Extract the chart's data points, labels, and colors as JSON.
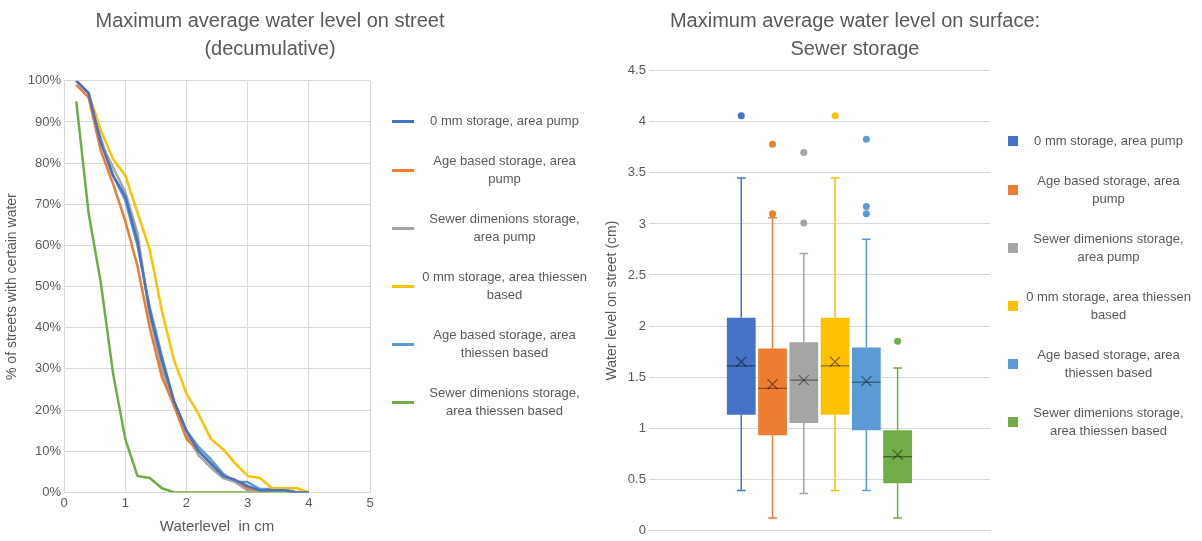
{
  "chart_data": [
    {
      "type": "line",
      "title": "Maximum average water level on street (decumulative)",
      "xlabel": "Waterlevel  in cm",
      "ylabel": "% of streets with certain water",
      "x": [
        0.2,
        0.4,
        0.6,
        0.8,
        1.0,
        1.2,
        1.4,
        1.6,
        1.8,
        2.0,
        2.2,
        2.4,
        2.6,
        2.8,
        3.0,
        3.2,
        3.4,
        3.6,
        3.8,
        4.0
      ],
      "series": [
        {
          "name": "0 mm storage, area pump",
          "color": "#4472c4",
          "values": [
            100,
            97,
            85,
            77,
            72,
            61,
            44,
            32,
            22,
            15,
            10,
            7,
            4,
            3,
            1.5,
            0.5,
            0.5,
            0.5,
            0,
            0
          ]
        },
        {
          "name": "Age based storage, area pump",
          "color": "#ed7d31",
          "values": [
            99,
            96,
            83,
            75,
            66,
            55,
            40,
            28,
            21,
            13,
            10,
            7,
            4,
            3,
            1,
            0.5,
            0.5,
            null,
            null,
            null
          ]
        },
        {
          "name": "Sewer dimenions storage, area pump",
          "color": "#a5a5a5",
          "values": [
            100,
            97,
            85,
            79,
            73,
            63,
            43,
            30,
            21,
            14,
            9,
            6,
            3.5,
            2.5,
            0.5,
            0.5,
            0.5,
            0.5,
            0,
            0
          ]
        },
        {
          "name": "0 mm storage, area thiessen based",
          "color": "#ffc000",
          "values": [
            100,
            97,
            88,
            81,
            77,
            68,
            59,
            44,
            32,
            24,
            19,
            13,
            10.5,
            7,
            4,
            3.5,
            1,
            1,
            1,
            0
          ]
        },
        {
          "name": "Age based storage, area thiessen based",
          "color": "#5b9bd5",
          "values": [
            100,
            97,
            86,
            77,
            71,
            60,
            45,
            33,
            22,
            15,
            11,
            8,
            4.5,
            2.5,
            2.5,
            0.8,
            0.8,
            0.8,
            0,
            0
          ]
        },
        {
          "name": "Sewer dimenions storage, area thiessen based",
          "color": "#70ad47",
          "values": [
            95,
            68,
            51,
            29,
            13,
            4,
            3.5,
            1,
            0,
            0,
            0,
            0,
            0,
            0,
            0,
            0,
            0,
            0,
            0,
            0
          ]
        }
      ],
      "xlim": [
        0,
        5
      ],
      "xticks": [
        0,
        1,
        2,
        3,
        4,
        5
      ],
      "ylim": [
        0,
        100
      ],
      "yticks": [
        {
          "value": 0,
          "label": "0%"
        },
        {
          "value": 10,
          "label": "10%"
        },
        {
          "value": 20,
          "label": "20%"
        },
        {
          "value": 30,
          "label": "30%"
        },
        {
          "value": 40,
          "label": "40%"
        },
        {
          "value": 50,
          "label": "50%"
        },
        {
          "value": 60,
          "label": "60%"
        },
        {
          "value": 70,
          "label": "70%"
        },
        {
          "value": 80,
          "label": "80%"
        },
        {
          "value": 90,
          "label": "90%"
        },
        {
          "value": 100,
          "label": "100%"
        }
      ],
      "grid": true,
      "legend": "right",
      "marker": "none"
    },
    {
      "type": "box",
      "title": "Maximum average water level on surface: Sewer storage",
      "ylabel": "Water level on street (cm)",
      "categories": [
        null
      ],
      "series": [
        {
          "name": "0 mm storage, area pump",
          "color": "#4472c4",
          "boxes": [
            {
              "low": 0.39,
              "q1": 1.13,
              "median": 1.61,
              "q3": 2.08,
              "high": 3.45,
              "mean": 1.65,
              "outliers": [
                4.06
              ]
            }
          ]
        },
        {
          "name": "Age based storage, area pump",
          "color": "#ed7d31",
          "boxes": [
            {
              "low": 0.12,
              "q1": 0.93,
              "median": 1.39,
              "q3": 1.78,
              "high": 3.06,
              "mean": 1.43,
              "outliers": [
                3.78,
                3.1
              ]
            }
          ]
        },
        {
          "name": "Sewer dimenions storage, area pump",
          "color": "#a5a5a5",
          "boxes": [
            {
              "low": 0.36,
              "q1": 1.05,
              "median": 1.47,
              "q3": 1.84,
              "high": 2.71,
              "mean": 1.47,
              "outliers": [
                3.7,
                3.01
              ]
            }
          ]
        },
        {
          "name": "0 mm storage, area thiessen based",
          "color": "#ffc000",
          "boxes": [
            {
              "low": 0.39,
              "q1": 1.13,
              "median": 1.61,
              "q3": 2.08,
              "high": 3.45,
              "mean": 1.65,
              "outliers": [
                4.06
              ]
            }
          ]
        },
        {
          "name": "Age based storage, area thiessen based",
          "color": "#5b9bd5",
          "boxes": [
            {
              "low": 0.39,
              "q1": 0.98,
              "median": 1.45,
              "q3": 1.79,
              "high": 2.85,
              "mean": 1.46,
              "outliers": [
                3.83,
                3.17,
                3.1
              ]
            }
          ]
        },
        {
          "name": "Sewer dimenions storage, area thiessen based",
          "color": "#70ad47",
          "boxes": [
            {
              "low": 0.12,
              "q1": 0.46,
              "median": 0.72,
              "q3": 0.98,
              "high": 1.59,
              "mean": 0.74,
              "outliers": [
                1.85
              ]
            }
          ]
        }
      ],
      "ylim": [
        0,
        4.5
      ],
      "yticks": [
        0,
        0.5,
        1,
        1.5,
        2,
        2.5,
        3,
        3.5,
        4,
        4.5
      ],
      "grid": "y",
      "legend": "right"
    }
  ]
}
